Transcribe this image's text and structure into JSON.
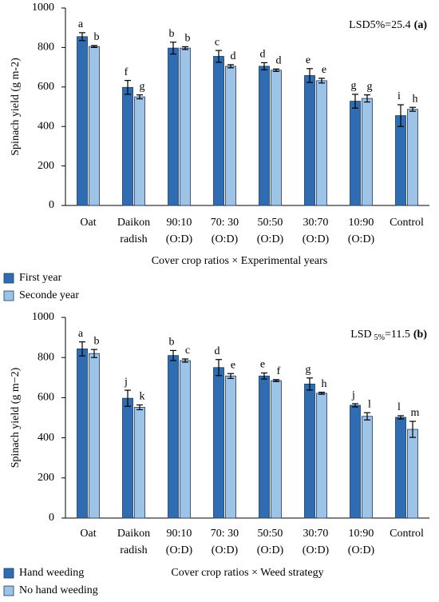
{
  "chart_data": [
    {
      "type": "bar",
      "y_label": "Spinach yield (g m-2)",
      "x_label": "Cover crop ratios × Experimental years",
      "annotation": "LSD5%=25.4",
      "panel_label": "(a)",
      "categories": [
        [
          "Oat"
        ],
        [
          "Daikon",
          "radish"
        ],
        [
          "90:10",
          "(O:D)"
        ],
        [
          "70: 30",
          "(O:D)"
        ],
        [
          "50:50",
          "(O:D)"
        ],
        [
          "30:70",
          "(O:D)"
        ],
        [
          "10:90",
          "(O:D)"
        ],
        [
          "Control"
        ]
      ],
      "series": [
        {
          "name": "First year",
          "color": "#2f6db3",
          "values": [
            855,
            598,
            797,
            755,
            705,
            658,
            528,
            455
          ],
          "errors": [
            20,
            35,
            30,
            30,
            18,
            35,
            35,
            55
          ],
          "letters": [
            "a",
            "f",
            "b",
            "c",
            "d",
            "e",
            "g",
            "i"
          ]
        },
        {
          "name": "Seconde year",
          "color": "#9dc3e6",
          "values": [
            805,
            550,
            797,
            705,
            685,
            632,
            542,
            487
          ],
          "errors": [
            5,
            10,
            7,
            8,
            6,
            12,
            18,
            10
          ],
          "letters": [
            "b",
            "g",
            "b",
            "d",
            "d",
            "e",
            "g",
            "h"
          ]
        }
      ],
      "ylim": [
        0,
        1000
      ],
      "yticks": [
        0,
        200,
        400,
        600,
        800,
        1000
      ],
      "legend": "bottom-left"
    },
    {
      "type": "bar",
      "y_label": "Spinach yield (g m−2)",
      "x_label": "Cover crop ratios × Weed strategy",
      "annotation_prefix": "LSD",
      "annotation_sub": "5%",
      "annotation": "=11.5",
      "panel_label": "(b)",
      "categories": [
        [
          "Oat"
        ],
        [
          "Daikon",
          "radish"
        ],
        [
          "90:10",
          "(O:D)"
        ],
        [
          "70: 30",
          "(O:D)"
        ],
        [
          "50:50",
          "(O:D)"
        ],
        [
          "30:70",
          "(O:D)"
        ],
        [
          "10:90",
          "(O:D)"
        ],
        [
          "Control"
        ]
      ],
      "series": [
        {
          "name": "Hand weeding",
          "color": "#2f6db3",
          "values": [
            843,
            597,
            810,
            750,
            708,
            668,
            562,
            502
          ],
          "errors": [
            35,
            40,
            25,
            40,
            15,
            30,
            8,
            8
          ],
          "letters": [
            "a",
            "j",
            "b",
            "d",
            "e",
            "g",
            "j",
            "l"
          ]
        },
        {
          "name": "No hand weeding",
          "color": "#9dc3e6",
          "values": [
            820,
            552,
            785,
            708,
            685,
            622,
            507,
            442
          ],
          "errors": [
            20,
            12,
            8,
            12,
            5,
            5,
            18,
            40
          ],
          "letters": [
            "b",
            "k",
            "c",
            "e",
            "f",
            "h",
            "l",
            "m"
          ]
        }
      ],
      "ylim": [
        0,
        1000
      ],
      "yticks": [
        0,
        200,
        400,
        600,
        800,
        1000
      ],
      "legend": "bottom-left"
    }
  ]
}
